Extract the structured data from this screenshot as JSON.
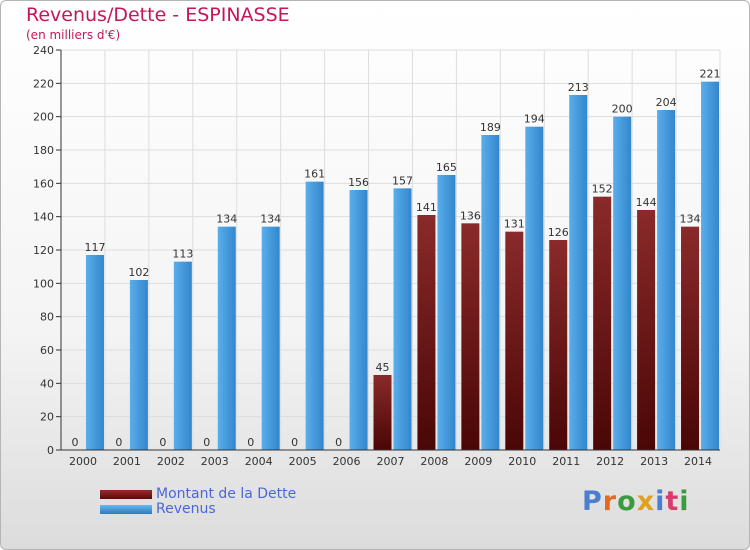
{
  "title": "Revenus/Dette - ESPINASSE",
  "subtitle": "(en milliers d'€)",
  "logo_text": "Proxiti",
  "colors": {
    "dette": "#7a1616",
    "revenus": "#3f96d8",
    "title": "#c2185b",
    "legend_text": "#4a67d8"
  },
  "chart_data": {
    "type": "bar",
    "categories": [
      "2000",
      "2001",
      "2002",
      "2003",
      "2004",
      "2005",
      "2006",
      "2007",
      "2008",
      "2009",
      "2010",
      "2011",
      "2012",
      "2013",
      "2014"
    ],
    "series": [
      {
        "name": "Montant de la Dette",
        "values": [
          0,
          0,
          0,
          0,
          0,
          0,
          0,
          45,
          141,
          136,
          131,
          126,
          152,
          144,
          134
        ],
        "labels": [
          "0",
          "0",
          "0",
          "0",
          "0",
          "0",
          "0",
          "45",
          "141",
          "136",
          "131",
          "126",
          "152",
          "144",
          "134"
        ]
      },
      {
        "name": "Revenus",
        "values": [
          117,
          102,
          113,
          134,
          134,
          161,
          156,
          157,
          165,
          189,
          194,
          213,
          200,
          204,
          221
        ],
        "labels": [
          "117",
          "102",
          "113",
          "134",
          "134",
          "161",
          "156",
          "157",
          "165",
          "189",
          "194",
          "213",
          "200",
          "204",
          "221"
        ]
      }
    ],
    "yticks": [
      "0",
      "20",
      "40",
      "60",
      "80",
      "100",
      "120",
      "140",
      "160",
      "180",
      "200",
      "220",
      "240"
    ],
    "ylim": [
      0,
      240
    ],
    "grid": true,
    "legend_position": "bottom-left"
  }
}
